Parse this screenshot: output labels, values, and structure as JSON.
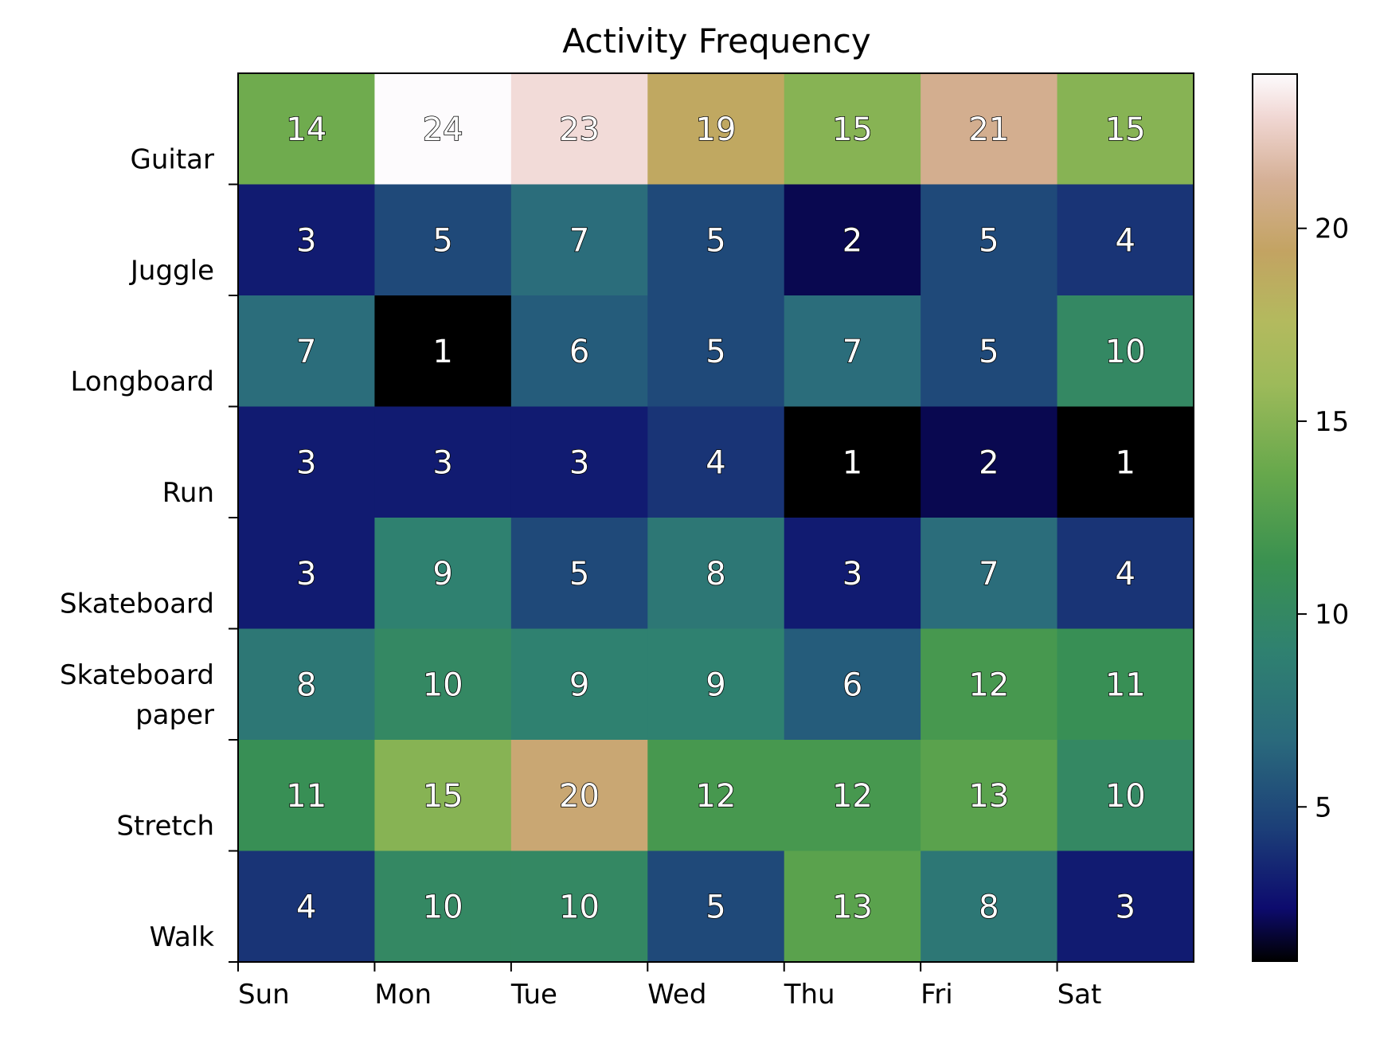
{
  "chart_data": {
    "type": "heatmap",
    "title": "Activity Frequency",
    "xlabel": "",
    "ylabel": "",
    "x_categories": [
      "Sun",
      "Mon",
      "Tue",
      "Wed",
      "Thu",
      "Fri",
      "Sat"
    ],
    "y_categories": [
      "Guitar",
      "Juggle",
      "Longboard",
      "Run",
      "Skateboard",
      "Skateboard\npaper",
      "Stretch",
      "Walk"
    ],
    "values": [
      [
        14,
        24,
        23,
        19,
        15,
        21,
        15
      ],
      [
        3,
        5,
        7,
        5,
        2,
        5,
        4
      ],
      [
        7,
        1,
        6,
        5,
        7,
        5,
        10
      ],
      [
        3,
        3,
        3,
        4,
        1,
        2,
        1
      ],
      [
        3,
        9,
        5,
        8,
        3,
        7,
        4
      ],
      [
        8,
        10,
        9,
        9,
        6,
        12,
        11
      ],
      [
        11,
        15,
        20,
        12,
        12,
        13,
        10
      ],
      [
        4,
        10,
        10,
        5,
        13,
        8,
        3
      ]
    ],
    "colormap": "gist_earth",
    "vmin": 1,
    "vmax": 24,
    "colorbar_ticks": [
      5,
      10,
      15,
      20
    ],
    "annotations": "cell values shown",
    "grid": false
  }
}
